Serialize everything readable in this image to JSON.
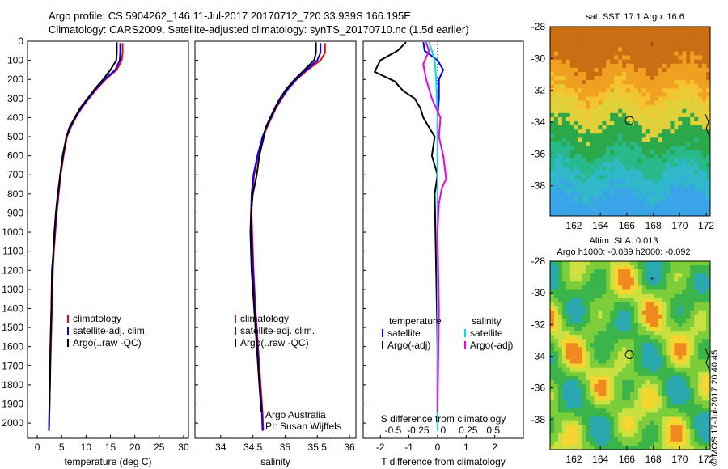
{
  "header": {
    "line1": "Argo profile: CS 5904262_146 11-Jul-2017 20170712_720 33.939S 166.195E",
    "line2": "Climatology: CARS2009. Satellite-adjusted climatology: synTS_20170710.nc (1.5d earlier)"
  },
  "sidebar_stamp": "©IMOS 17-Jul-2017 20:40:45",
  "colors": {
    "climatology": "#ff0000",
    "satellite": "#0000ff",
    "argo": "#000000",
    "sal_satellite": "#00dddd",
    "sal_argo": "#ee00ee"
  },
  "chart_data": [
    {
      "type": "line",
      "id": "temperature",
      "xlabel": "temperature (deg C)",
      "xlim": [
        -2,
        31
      ],
      "xticks": [
        0,
        5,
        10,
        15,
        20,
        25,
        30
      ],
      "ylim": [
        0,
        2080
      ],
      "yticks": [
        0,
        100,
        200,
        300,
        400,
        500,
        600,
        700,
        800,
        900,
        1000,
        1100,
        1200,
        1300,
        1400,
        1500,
        1600,
        1700,
        1800,
        1900,
        2000
      ],
      "y_inverted": true,
      "legend": {
        "position": "lower-center",
        "entries": [
          "climatology",
          "satellite-adj. clim.",
          "Argo(..raw -QC)"
        ]
      },
      "series": [
        {
          "name": "climatology",
          "color": "#ff0000",
          "x": [
            17.5,
            17.5,
            17.3,
            16.3,
            14.0,
            12.2,
            10.6,
            9.1,
            7.9,
            6.9,
            6.1,
            5.4,
            4.8,
            4.4,
            4.0,
            3.7,
            3.4,
            3.2,
            3.0,
            2.8,
            2.7,
            2.6,
            2.5,
            2.4
          ],
          "y": [
            10,
            60,
            100,
            150,
            200,
            250,
            300,
            350,
            400,
            450,
            500,
            600,
            700,
            800,
            900,
            1000,
            1100,
            1200,
            1400,
            1600,
            1700,
            1800,
            1900,
            2040
          ]
        },
        {
          "name": "satellite-adj. clim.",
          "color": "#0000ff",
          "x": [
            17.0,
            17.0,
            16.9,
            16.0,
            13.8,
            12.0,
            10.5,
            9.0,
            7.8,
            6.8,
            6.0,
            5.3,
            4.7,
            4.3,
            3.9,
            3.6,
            3.3,
            3.1,
            2.9,
            2.7,
            2.6,
            2.5,
            2.4
          ],
          "y": [
            10,
            60,
            100,
            150,
            200,
            250,
            300,
            350,
            400,
            450,
            500,
            600,
            700,
            800,
            900,
            1000,
            1100,
            1200,
            1400,
            1600,
            1800,
            1900,
            2040
          ]
        },
        {
          "name": "Argo(..raw -QC)",
          "color": "#000000",
          "x": [
            16.3,
            16.3,
            16.2,
            15.0,
            13.5,
            11.8,
            10.3,
            8.8,
            7.7,
            6.6,
            6.0,
            5.2,
            4.7,
            4.2,
            3.8,
            3.5,
            3.3,
            3.0,
            2.9,
            2.7,
            2.6,
            2.5
          ],
          "y": [
            5,
            60,
            100,
            150,
            200,
            250,
            300,
            350,
            400,
            450,
            500,
            600,
            700,
            800,
            900,
            1000,
            1100,
            1200,
            1400,
            1600,
            1800,
            1940
          ]
        }
      ]
    },
    {
      "type": "line",
      "id": "salinity",
      "xlabel": "salinity",
      "xlim": [
        33.6,
        36.1
      ],
      "xticks": [
        34,
        34.5,
        35,
        35.5,
        36
      ],
      "ylim": [
        0,
        2080
      ],
      "y_inverted": true,
      "legend": {
        "position": "lower-center",
        "entries": [
          "climatology",
          "satellite-adj. clim.",
          "Argo(..raw -QC)"
        ]
      },
      "annotation": [
        "Argo Australia",
        "PI: Susan Wijffels"
      ],
      "series": [
        {
          "name": "climatology",
          "color": "#ff0000",
          "x": [
            35.62,
            35.62,
            35.55,
            35.35,
            35.18,
            35.05,
            34.95,
            34.86,
            34.79,
            34.72,
            34.66,
            34.58,
            34.52,
            34.49,
            34.48,
            34.49,
            34.51,
            34.54,
            34.58,
            34.62,
            34.65,
            34.66
          ],
          "y": [
            10,
            60,
            100,
            150,
            200,
            250,
            300,
            350,
            400,
            450,
            500,
            600,
            700,
            800,
            900,
            1000,
            1200,
            1400,
            1600,
            1800,
            1950,
            2040
          ]
        },
        {
          "name": "satellite-adj. clim.",
          "color": "#0000ff",
          "x": [
            35.55,
            35.55,
            35.5,
            35.33,
            35.17,
            35.04,
            34.94,
            34.85,
            34.78,
            34.71,
            34.65,
            34.57,
            34.51,
            34.48,
            34.47,
            34.48,
            34.5,
            34.53,
            34.57,
            34.61,
            34.64,
            34.65
          ],
          "y": [
            10,
            60,
            100,
            150,
            200,
            250,
            300,
            350,
            400,
            450,
            500,
            600,
            700,
            800,
            900,
            1000,
            1200,
            1400,
            1600,
            1800,
            1950,
            2040
          ]
        },
        {
          "name": "Argo(..raw -QC)",
          "color": "#000000",
          "x": [
            35.48,
            35.48,
            35.45,
            35.3,
            35.15,
            35.02,
            34.92,
            34.84,
            34.77,
            34.7,
            34.67,
            34.6,
            34.56,
            34.5,
            34.47,
            34.46,
            34.48,
            34.52,
            34.56,
            34.6,
            34.63
          ],
          "y": [
            5,
            60,
            100,
            150,
            200,
            250,
            300,
            350,
            400,
            450,
            500,
            600,
            700,
            800,
            900,
            1000,
            1200,
            1400,
            1600,
            1800,
            1940
          ]
        }
      ]
    },
    {
      "type": "line",
      "id": "difference",
      "xlabel": "T difference from climatology",
      "xlabel_top": "S difference from climatology",
      "xlim": [
        -2.6,
        3.0
      ],
      "xticks": [
        -2,
        -1,
        0,
        1,
        2
      ],
      "xticks_top": [
        -0.5,
        -0.25,
        0,
        0.25,
        0.5
      ],
      "ylim": [
        0,
        2080
      ],
      "y_inverted": true,
      "legend": {
        "position": "lower-center",
        "groups": [
          {
            "title": "temperature",
            "entries": [
              "satellite",
              "Argo(-adj)"
            ]
          },
          {
            "title": "salinity",
            "entries": [
              "satellite",
              "Argo(-adj)"
            ]
          }
        ]
      },
      "series": [
        {
          "name": "satellite",
          "group": "temperature",
          "color": "#0000ff",
          "x": [
            -0.5,
            -0.45,
            0.0,
            0.2,
            0.05,
            0.05,
            0.0,
            0.0,
            0.0,
            0.0,
            0.0,
            0.0
          ],
          "y": [
            5,
            50,
            100,
            150,
            200,
            300,
            400,
            600,
            800,
            1200,
            1600,
            2000
          ]
        },
        {
          "name": "Argo(-adj)",
          "group": "temperature",
          "color": "#000000",
          "x": [
            -1.1,
            -1.4,
            -2.0,
            -2.2,
            -1.5,
            -1.2,
            -0.8,
            -0.6,
            -0.5,
            -0.3,
            -0.1,
            -0.2,
            0.0,
            -0.1,
            -0.05,
            0.0,
            0.0
          ],
          "y": [
            5,
            50,
            100,
            160,
            210,
            260,
            300,
            350,
            400,
            450,
            500,
            600,
            700,
            800,
            1200,
            1600,
            1940
          ]
        },
        {
          "name": "satellite",
          "group": "salinity",
          "color": "#00dddd",
          "x": [
            -0.3,
            -0.2,
            -0.1,
            -0.05,
            0.0,
            0.0,
            0.0,
            0.0,
            0.0,
            0.0,
            0.0
          ],
          "y": [
            5,
            50,
            100,
            200,
            400,
            600,
            800,
            1200,
            1600,
            1800,
            2040
          ]
        },
        {
          "name": "Argo(-adj)",
          "group": "salinity",
          "color": "#ee00ee",
          "x": [
            -0.4,
            -0.3,
            -0.5,
            -0.4,
            -0.2,
            0.1,
            0.05,
            0.2,
            0.3,
            0.15,
            0.05,
            0.0,
            0.05,
            0.0
          ],
          "y": [
            5,
            50,
            120,
            200,
            300,
            400,
            500,
            600,
            720,
            770,
            850,
            1000,
            1400,
            1940
          ]
        }
      ]
    },
    {
      "type": "heatmap",
      "id": "sst-map",
      "title": "sat. SST: 17.1 Argo: 16.6",
      "xlim": [
        160.2,
        172.3
      ],
      "ylim": [
        -39.9,
        -28.0
      ],
      "xticks": [
        162,
        164,
        166,
        168,
        170,
        172
      ],
      "yticks": [
        -28,
        -30,
        -32,
        -34,
        -36,
        -38
      ],
      "marker_circle": [
        166.2,
        -33.9
      ],
      "marker_plus": [
        167.9,
        -29.1
      ]
    },
    {
      "type": "heatmap",
      "id": "sla-map",
      "title": "Altim. SLA: 0.013",
      "subtitle": "Argo h1000: -0.089 h2000: -0.092",
      "xlim": [
        160.2,
        172.3
      ],
      "ylim": [
        -39.9,
        -28.0
      ],
      "xticks": [
        162,
        164,
        166,
        168,
        170,
        172
      ],
      "yticks": [
        -28,
        -30,
        -32,
        -34,
        -36,
        -38
      ],
      "marker_circle": [
        166.2,
        -33.9
      ],
      "marker_plus": [
        167.9,
        -29.1
      ]
    }
  ]
}
